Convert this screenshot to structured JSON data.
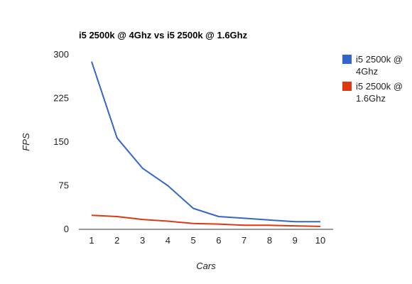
{
  "chart_data": {
    "type": "line",
    "title": "i5 2500k @ 4Ghz vs i5 2500k @ 1.6Ghz",
    "xlabel": "Cars",
    "ylabel": "FPS",
    "x": [
      1,
      2,
      3,
      4,
      5,
      6,
      7,
      8,
      9,
      10
    ],
    "x_tick_labels": [
      "1",
      "2",
      "3",
      "4",
      "5",
      "6",
      "7",
      "8",
      "9",
      "10"
    ],
    "y_ticks": [
      0,
      75,
      150,
      225,
      300
    ],
    "ylim": [
      0,
      300
    ],
    "grid": false,
    "legend_position": "right",
    "series": [
      {
        "name": "i5 2500k @ 4Ghz",
        "name_lines": [
          "i5 2500k @",
          "4Ghz"
        ],
        "color": "#3366cc",
        "values": [
          288,
          157,
          105,
          75,
          36,
          22,
          19,
          16,
          13,
          13
        ]
      },
      {
        "name": "i5 2500k @ 1.6Ghz",
        "name_lines": [
          "i5 2500k @",
          "1.6Ghz"
        ],
        "color": "#dc3912",
        "values": [
          24,
          22,
          17,
          14,
          10,
          9,
          7,
          7,
          6,
          5
        ]
      }
    ]
  }
}
